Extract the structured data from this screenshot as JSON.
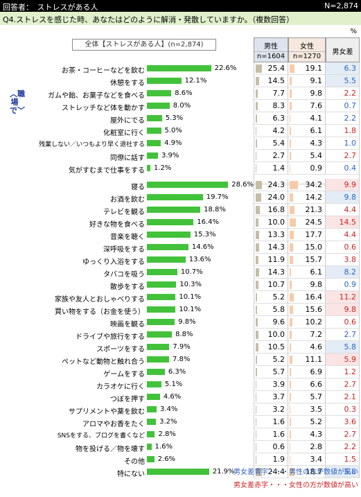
{
  "header": {
    "left": "回答者：　ストレスがある人",
    "right": "N=2,874"
  },
  "question": "Q4.ストレスを感じた時、あなたはどのように解消・発散していますか。（複数回答）",
  "percent_unit": "%",
  "base_label": "全体【ストレスがある人】(n=2,874)",
  "side_label": "︿職場で﹀",
  "columns": {
    "male": {
      "label": "男性",
      "n": "n=1604"
    },
    "female": {
      "label": "女性",
      "n": "n=1270"
    },
    "diff": {
      "label": "男女差"
    }
  },
  "chart_data": {
    "type": "bar",
    "xlim": [
      0,
      30
    ],
    "groups": [
      {
        "name": "職場で",
        "items": [
          {
            "label": "お茶・コーヒーなどを飲む",
            "total": 22.6,
            "male": 25.4,
            "female": 19.1,
            "diff": 6.3
          },
          {
            "label": "休憩をする",
            "total": 12.1,
            "male": 14.5,
            "female": 9.1,
            "diff": 5.5
          },
          {
            "label": "ガムや飴、お菓子などを食べる",
            "total": 8.6,
            "male": 7.7,
            "female": 9.8,
            "diff": 2.2
          },
          {
            "label": "ストレッチなど体を動かす",
            "total": 8.0,
            "male": 8.3,
            "female": 7.6,
            "diff": 0.7
          },
          {
            "label": "屋外にでる",
            "total": 5.3,
            "male": 6.3,
            "female": 4.1,
            "diff": 2.2
          },
          {
            "label": "化粧室に行く",
            "total": 5.0,
            "male": 4.2,
            "female": 6.1,
            "diff": 1.8
          },
          {
            "label": "残業しない／いつもより早く退社する",
            "total": 4.9,
            "male": 5.4,
            "female": 4.3,
            "diff": 1.0
          },
          {
            "label": "同僚に話す",
            "total": 3.9,
            "male": 2.7,
            "female": 5.4,
            "diff": 2.7
          },
          {
            "label": "気がすむまで仕事をする",
            "total": 1.2,
            "male": 1.4,
            "female": 0.9,
            "diff": 0.4
          }
        ]
      },
      {
        "name": "",
        "items": [
          {
            "label": "寝る",
            "total": 28.6,
            "male": 24.3,
            "female": 34.2,
            "diff": 9.9
          },
          {
            "label": "お酒を飲む",
            "total": 19.7,
            "male": 24.0,
            "female": 14.2,
            "diff": 9.8
          },
          {
            "label": "テレビを観る",
            "total": 18.8,
            "male": 16.8,
            "female": 21.3,
            "diff": 4.4
          },
          {
            "label": "好きな物を食べる",
            "total": 16.4,
            "male": 10.0,
            "female": 24.5,
            "diff": 14.5
          },
          {
            "label": "音楽を聴く",
            "total": 15.3,
            "male": 13.3,
            "female": 17.7,
            "diff": 4.4
          },
          {
            "label": "深呼吸をする",
            "total": 14.6,
            "male": 14.3,
            "female": 15.0,
            "diff": 0.6
          },
          {
            "label": "ゆっくり入浴をする",
            "total": 13.6,
            "male": 11.9,
            "female": 15.7,
            "diff": 3.8
          },
          {
            "label": "タバコを吸う",
            "total": 10.7,
            "male": 14.3,
            "female": 6.1,
            "diff": 8.2
          },
          {
            "label": "散歩をする",
            "total": 10.3,
            "male": 10.7,
            "female": 9.8,
            "diff": 0.9
          },
          {
            "label": "家族や友人とおしゃべりする",
            "total": 10.1,
            "male": 5.2,
            "female": 16.4,
            "diff": 11.2
          },
          {
            "label": "買い物をする（お金を使う）",
            "total": 10.1,
            "male": 5.8,
            "female": 15.6,
            "diff": 9.8
          },
          {
            "label": "映画を観る",
            "total": 9.8,
            "male": 9.6,
            "female": 10.2,
            "diff": 0.6
          },
          {
            "label": "ドライブや旅行をする",
            "total": 8.8,
            "male": 10.0,
            "female": 7.2,
            "diff": 2.7
          },
          {
            "label": "スポーツをする",
            "total": 7.9,
            "male": 10.5,
            "female": 4.6,
            "diff": 5.8
          },
          {
            "label": "ペットなど動物と触れ合う",
            "total": 7.8,
            "male": 5.2,
            "female": 11.1,
            "diff": 5.9
          },
          {
            "label": "ゲームをする",
            "total": 6.3,
            "male": 5.7,
            "female": 6.9,
            "diff": 1.2
          },
          {
            "label": "カラオケに行く",
            "total": 5.1,
            "male": 3.9,
            "female": 6.6,
            "diff": 2.7
          },
          {
            "label": "つぼを押す",
            "total": 4.6,
            "male": 3.7,
            "female": 5.7,
            "diff": 2.1
          },
          {
            "label": "サプリメントや薬を飲む",
            "total": 3.4,
            "male": 3.2,
            "female": 3.5,
            "diff": 0.3
          },
          {
            "label": "アロマやお香をたく",
            "total": 3.2,
            "male": 1.6,
            "female": 5.2,
            "diff": 3.6
          },
          {
            "label": "SNSをする、ブログを書くなど",
            "total": 2.8,
            "male": 1.6,
            "female": 4.3,
            "diff": 2.7
          },
          {
            "label": "物を投げる／物を壊す",
            "total": 1.6,
            "male": 0.6,
            "female": 2.8,
            "diff": 2.2
          },
          {
            "label": "その他",
            "total": 2.6,
            "male": 1.9,
            "female": 3.4,
            "diff": 1.5
          },
          {
            "label": "特にない",
            "total": 21.9,
            "male": 24.4,
            "female": 18.7,
            "diff": 5.8
          }
        ]
      }
    ],
    "colors": {
      "bar": "#42c23a",
      "male_mini": "#c6bda8",
      "female_mini": "#f7cba8",
      "blue": "#2e63c2",
      "red": "#cc2222"
    }
  },
  "legend": {
    "blue": "男女差青字・・・男性の方が数値が高い",
    "red": "男女差赤字・・・女性の方が数値が高い"
  }
}
